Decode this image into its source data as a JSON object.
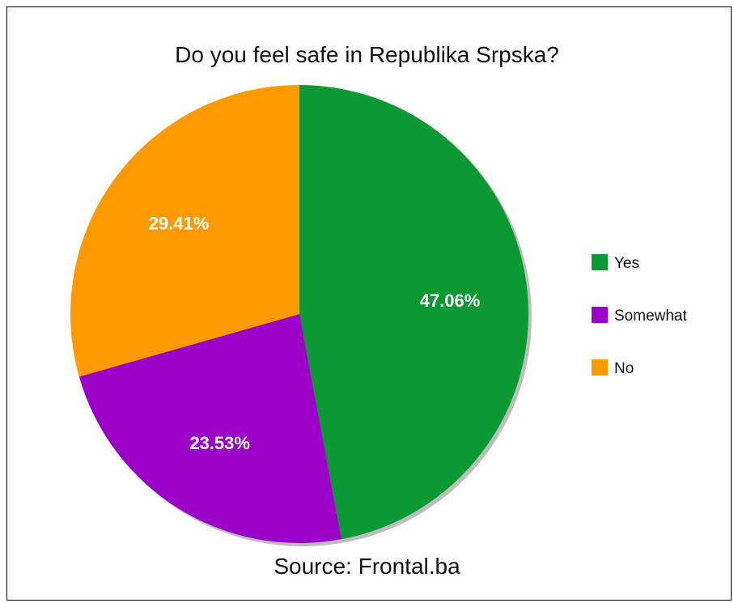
{
  "chart_data": {
    "type": "pie",
    "title": "Do you feel safe in Republika Srpska?",
    "source": "Source: Frontal.ba",
    "legend_position": "right",
    "slices": [
      {
        "label": "Yes",
        "value": 47.06,
        "value_label": "47.06%",
        "color": "#0a9932"
      },
      {
        "label": "Somewhat",
        "value": 23.53,
        "value_label": "23.53%",
        "color": "#9b00c7"
      },
      {
        "label": "No",
        "value": 29.41,
        "value_label": "29.41%",
        "color": "#ff9900"
      }
    ]
  }
}
